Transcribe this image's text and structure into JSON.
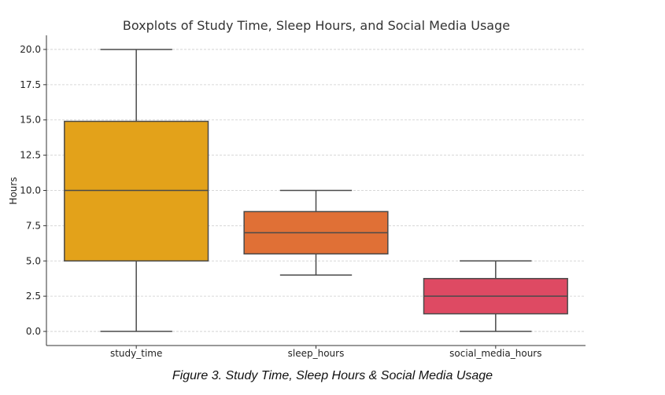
{
  "caption": "Figure 3. Study Time, Sleep Hours & Social Media Usage",
  "chart_data": {
    "type": "boxplot",
    "title": "Boxplots of Study Time, Sleep Hours, and Social Media Usage",
    "xlabel": "",
    "ylabel": "Hours",
    "ylim": [
      -1.0,
      21.0
    ],
    "yticks": [
      "0.0",
      "2.5",
      "5.0",
      "7.5",
      "10.0",
      "12.5",
      "15.0",
      "17.5",
      "20.0"
    ],
    "grid": "horizontal dashed",
    "categories": [
      "study_time",
      "sleep_hours",
      "social_media_hours"
    ],
    "boxes": [
      {
        "category": "study_time",
        "min": 0,
        "q1": 5,
        "median": 10,
        "q3": 14.9,
        "max": 20,
        "color": "#E3A21A"
      },
      {
        "category": "sleep_hours",
        "min": 4,
        "q1": 5.5,
        "median": 7,
        "q3": 8.5,
        "max": 10,
        "color": "#E07036"
      },
      {
        "category": "social_media_hours",
        "min": 0,
        "q1": 1.25,
        "median": 2.5,
        "q3": 3.75,
        "max": 5,
        "color": "#DE4A63"
      }
    ]
  }
}
